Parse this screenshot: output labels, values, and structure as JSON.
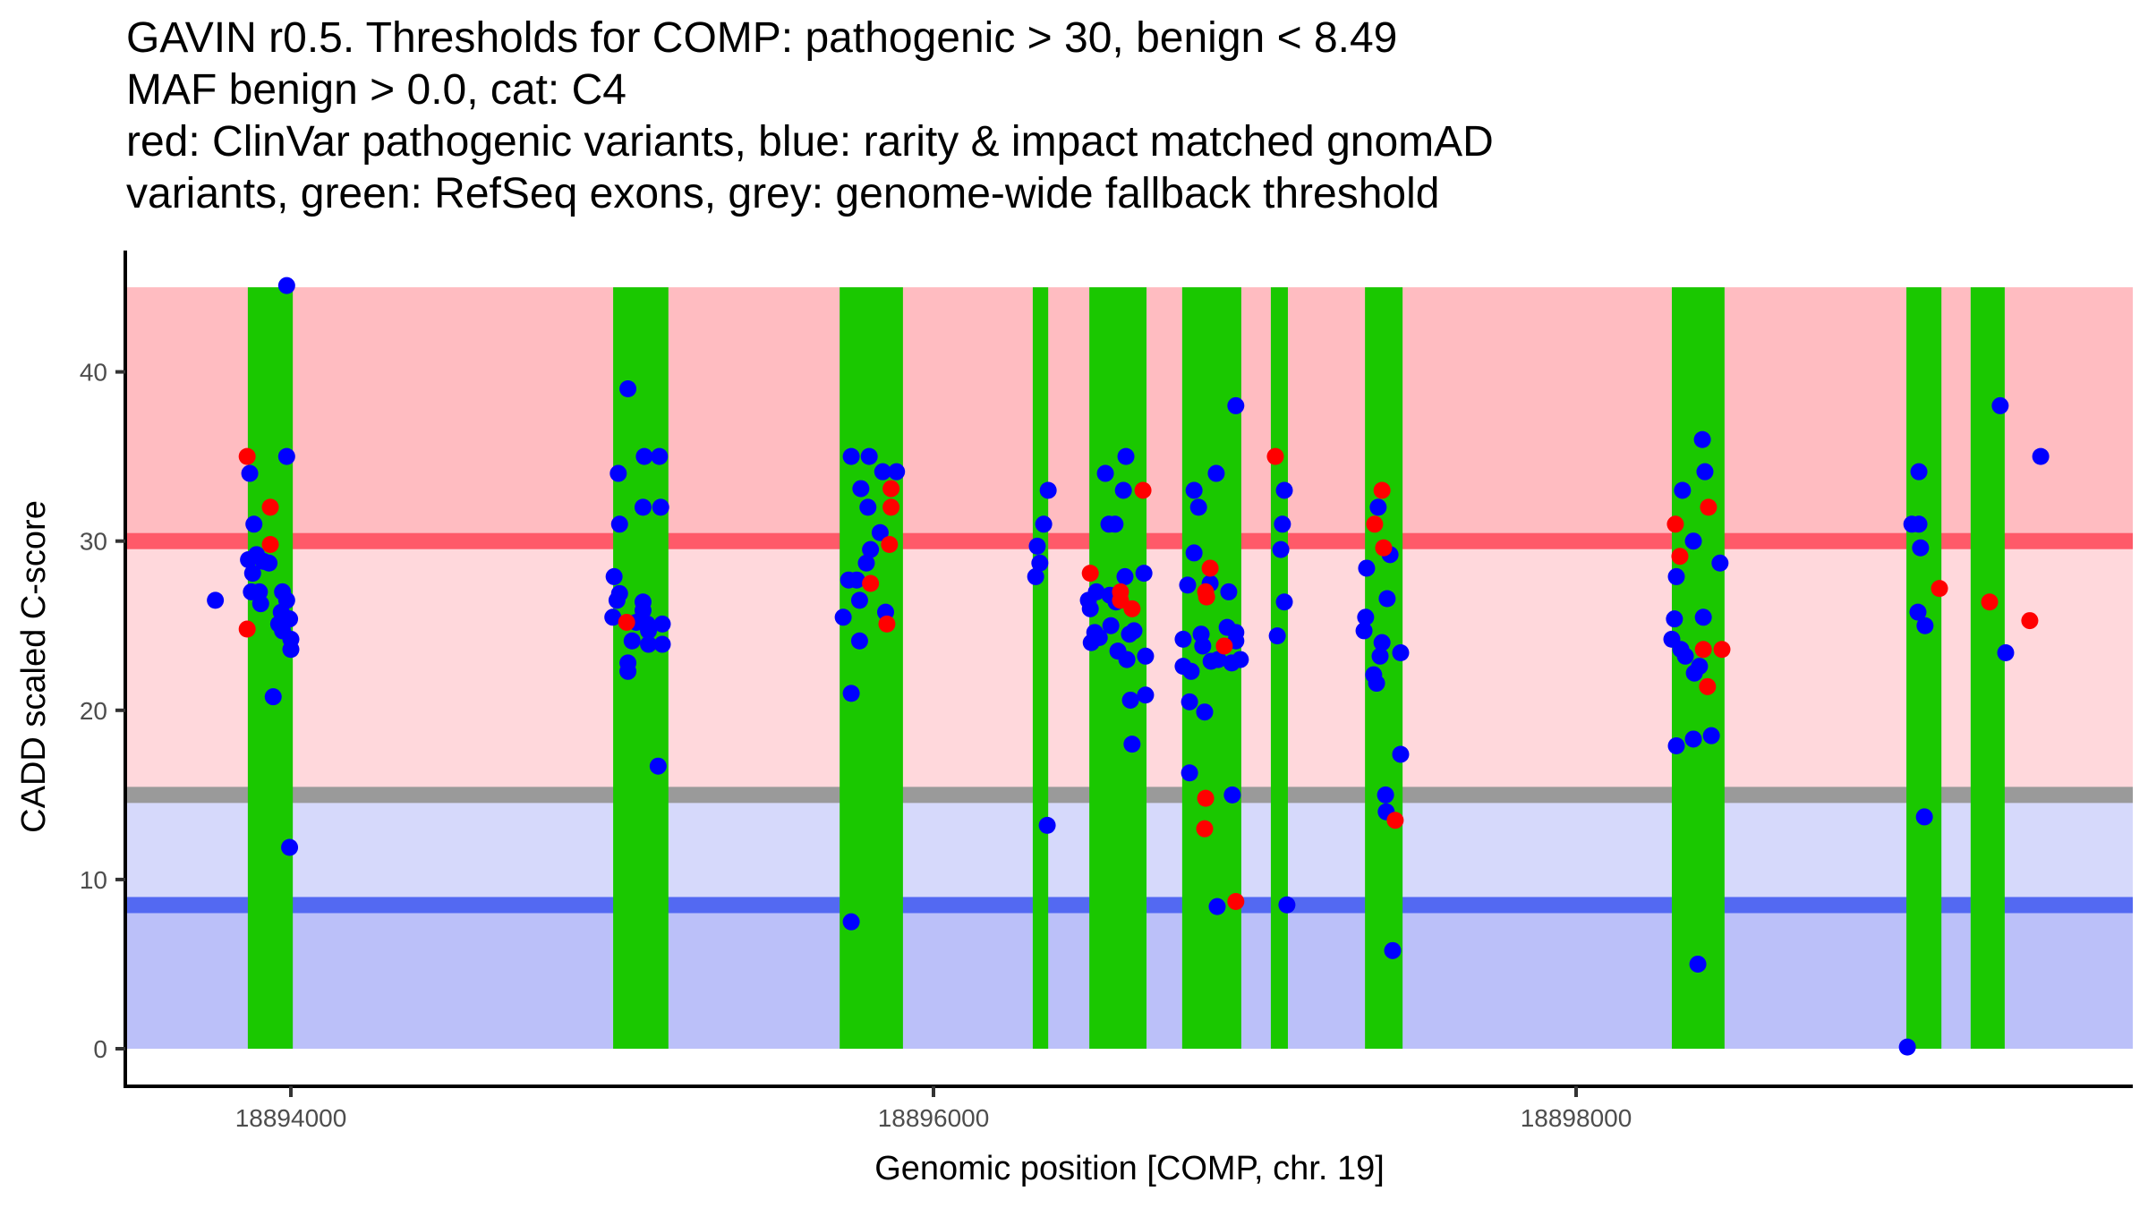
{
  "chart_data": {
    "type": "scatter",
    "title_lines": [
      "GAVIN r0.5. Thresholds for COMP: pathogenic > 30, benign < 8.49",
      "MAF benign > 0.0, cat: C4",
      "red: ClinVar pathogenic variants, blue: rarity & impact matched gnomAD",
      "variants, green: RefSeq exons, grey: genome-wide fallback threshold"
    ],
    "xlabel": "Genomic position [COMP, chr. 19]",
    "ylabel": "CADD scaled C-score",
    "xlim": [
      18893490,
      18899733
    ],
    "ylim": [
      -2.3,
      47.3
    ],
    "x_ticks": [
      {
        "value": 18894000,
        "label": "18894000"
      },
      {
        "value": 18896000,
        "label": "18896000"
      },
      {
        "value": 18898000,
        "label": "18898000"
      }
    ],
    "y_ticks": [
      {
        "value": 0,
        "label": "0"
      },
      {
        "value": 10,
        "label": "10"
      },
      {
        "value": 20,
        "label": "20"
      },
      {
        "value": 30,
        "label": "30"
      },
      {
        "value": 40,
        "label": "40"
      }
    ],
    "grid": false,
    "thresholds": {
      "pathogenic": 30,
      "benign": 8.49,
      "genome_wide_fallback": 15,
      "band_top": 45
    },
    "bands": [
      {
        "name": "pathogenic-zone",
        "from": 30,
        "to": 45,
        "color": "#FFBCC1"
      },
      {
        "name": "likely-pathogenic-zone",
        "from": 15,
        "to": 30,
        "color": "#FFD8DC"
      },
      {
        "name": "likely-benign-zone",
        "from": 8.49,
        "to": 15,
        "color": "#D6D9FB"
      },
      {
        "name": "benign-zone",
        "from": 0,
        "to": 8.49,
        "color": "#BBC0F9"
      }
    ],
    "threshold_lines": [
      {
        "name": "pathogenic-threshold-line",
        "value": 30,
        "color": "#FF5A69"
      },
      {
        "name": "fallback-threshold-line",
        "value": 15,
        "color": "#9A9A9A"
      },
      {
        "name": "benign-threshold-line",
        "value": 8.49,
        "color": "#5369F2"
      }
    ],
    "colors": {
      "pathogenic": "#FF0000",
      "gnomad": "#0000FF",
      "exon": "#1AC800"
    },
    "exons": [
      {
        "start": 18893866,
        "end": 18894006
      },
      {
        "start": 18895003,
        "end": 18895175
      },
      {
        "start": 18895708,
        "end": 18895905
      },
      {
        "start": 18896309,
        "end": 18896357
      },
      {
        "start": 18896485,
        "end": 18896663
      },
      {
        "start": 18896774,
        "end": 18896958
      },
      {
        "start": 18897050,
        "end": 18897103
      },
      {
        "start": 18897343,
        "end": 18897460
      },
      {
        "start": 18898298,
        "end": 18898462
      },
      {
        "start": 18899028,
        "end": 18899137
      },
      {
        "start": 18899228,
        "end": 18899334
      }
    ],
    "series": [
      {
        "name": "gnomAD (rarity & impact matched)",
        "color": "#0000FF",
        "points": [
          [
            18893765,
            26.5
          ],
          [
            18893872,
            34.0
          ],
          [
            18893885,
            31.0
          ],
          [
            18893868,
            28.9
          ],
          [
            18893893,
            29.2
          ],
          [
            18893915,
            28.8
          ],
          [
            18893932,
            28.7
          ],
          [
            18893881,
            28.1
          ],
          [
            18893877,
            27.0
          ],
          [
            18893902,
            27.0
          ],
          [
            18893906,
            26.3
          ],
          [
            18893945,
            20.8
          ],
          [
            18893987,
            45.1
          ],
          [
            18893987,
            35.0
          ],
          [
            18893974,
            27.0
          ],
          [
            18893987,
            26.5
          ],
          [
            18893970,
            25.8
          ],
          [
            18893996,
            25.4
          ],
          [
            18893962,
            25.1
          ],
          [
            18893974,
            24.7
          ],
          [
            18894000,
            24.2
          ],
          [
            18894000,
            23.6
          ],
          [
            18893996,
            11.9
          ],
          [
            18895049,
            39.0
          ],
          [
            18895019,
            34.0
          ],
          [
            18895100,
            35.0
          ],
          [
            18895147,
            35.0
          ],
          [
            18895096,
            32.0
          ],
          [
            18895151,
            32.0
          ],
          [
            18895023,
            31.0
          ],
          [
            18895006,
            27.9
          ],
          [
            18895023,
            26.9
          ],
          [
            18895015,
            26.5
          ],
          [
            18895096,
            26.4
          ],
          [
            18895096,
            25.9
          ],
          [
            18895002,
            25.5
          ],
          [
            18895075,
            25.2
          ],
          [
            18895109,
            25.1
          ],
          [
            18895156,
            25.1
          ],
          [
            18895113,
            24.7
          ],
          [
            18895062,
            24.1
          ],
          [
            18895113,
            23.9
          ],
          [
            18895156,
            23.9
          ],
          [
            18895049,
            22.8
          ],
          [
            18895049,
            22.3
          ],
          [
            18895143,
            16.7
          ],
          [
            18895744,
            35.0
          ],
          [
            18895800,
            35.0
          ],
          [
            18895774,
            33.1
          ],
          [
            18895842,
            34.1
          ],
          [
            18895885,
            34.1
          ],
          [
            18895796,
            32.0
          ],
          [
            18895834,
            30.5
          ],
          [
            18895804,
            29.5
          ],
          [
            18895791,
            28.7
          ],
          [
            18895761,
            27.7
          ],
          [
            18895736,
            27.7
          ],
          [
            18895770,
            26.5
          ],
          [
            18895719,
            25.5
          ],
          [
            18895851,
            25.8
          ],
          [
            18895770,
            24.1
          ],
          [
            18895744,
            21.0
          ],
          [
            18895744,
            7.5
          ],
          [
            18896357,
            33.0
          ],
          [
            18896343,
            31.0
          ],
          [
            18896323,
            29.7
          ],
          [
            18896331,
            28.7
          ],
          [
            18896318,
            27.9
          ],
          [
            18896354,
            13.2
          ],
          [
            18896599,
            35.0
          ],
          [
            18896535,
            34.0
          ],
          [
            18896591,
            33.0
          ],
          [
            18896546,
            31.0
          ],
          [
            18896565,
            31.0
          ],
          [
            18896596,
            27.9
          ],
          [
            18896655,
            28.1
          ],
          [
            18896507,
            27.0
          ],
          [
            18896482,
            26.5
          ],
          [
            18896488,
            26.0
          ],
          [
            18896568,
            26.4
          ],
          [
            18896549,
            26.8
          ],
          [
            18896552,
            25.0
          ],
          [
            18896502,
            24.6
          ],
          [
            18896491,
            24.0
          ],
          [
            18896516,
            24.3
          ],
          [
            18896624,
            24.7
          ],
          [
            18896610,
            24.5
          ],
          [
            18896574,
            23.5
          ],
          [
            18896602,
            23.0
          ],
          [
            18896660,
            23.2
          ],
          [
            18896613,
            20.6
          ],
          [
            18896660,
            20.9
          ],
          [
            18896618,
            18.0
          ],
          [
            18896941,
            38.0
          ],
          [
            18896880,
            34.0
          ],
          [
            18896811,
            33.0
          ],
          [
            18896825,
            32.0
          ],
          [
            18896811,
            29.3
          ],
          [
            18896791,
            27.4
          ],
          [
            18896861,
            27.5
          ],
          [
            18896919,
            27.0
          ],
          [
            18896777,
            24.2
          ],
          [
            18896833,
            24.5
          ],
          [
            18896838,
            23.8
          ],
          [
            18896914,
            24.9
          ],
          [
            18896941,
            24.6
          ],
          [
            18896941,
            24.1
          ],
          [
            18896777,
            22.6
          ],
          [
            18896802,
            22.3
          ],
          [
            18896864,
            22.9
          ],
          [
            18896886,
            23.0
          ],
          [
            18896928,
            22.8
          ],
          [
            18896955,
            23.0
          ],
          [
            18896797,
            20.5
          ],
          [
            18896844,
            19.9
          ],
          [
            18896797,
            16.3
          ],
          [
            18896930,
            15.0
          ],
          [
            18896883,
            8.4
          ],
          [
            18897092,
            33.0
          ],
          [
            18897086,
            31.0
          ],
          [
            18897081,
            29.5
          ],
          [
            18897092,
            26.4
          ],
          [
            18897070,
            24.4
          ],
          [
            18897100,
            8.5
          ],
          [
            18897384,
            32.0
          ],
          [
            18897421,
            29.2
          ],
          [
            18897348,
            28.4
          ],
          [
            18897412,
            26.6
          ],
          [
            18897345,
            25.5
          ],
          [
            18897340,
            24.7
          ],
          [
            18897396,
            24.0
          ],
          [
            18897390,
            23.2
          ],
          [
            18897454,
            23.4
          ],
          [
            18897370,
            22.1
          ],
          [
            18897379,
            21.6
          ],
          [
            18897454,
            17.4
          ],
          [
            18897407,
            15.0
          ],
          [
            18897409,
            14.0
          ],
          [
            18897429,
            5.8
          ],
          [
            18898393,
            36.0
          ],
          [
            18898401,
            34.1
          ],
          [
            18898331,
            33.0
          ],
          [
            18898365,
            30.0
          ],
          [
            18898448,
            28.7
          ],
          [
            18898312,
            27.9
          ],
          [
            18898306,
            25.4
          ],
          [
            18898396,
            25.5
          ],
          [
            18898298,
            24.2
          ],
          [
            18898326,
            23.6
          ],
          [
            18898340,
            23.2
          ],
          [
            18898384,
            22.6
          ],
          [
            18898368,
            22.2
          ],
          [
            18898312,
            17.9
          ],
          [
            18898365,
            18.3
          ],
          [
            18898421,
            18.5
          ],
          [
            18898379,
            5.0
          ],
          [
            18899067,
            34.1
          ],
          [
            18899045,
            31.0
          ],
          [
            18899067,
            31.0
          ],
          [
            18899072,
            29.6
          ],
          [
            18899064,
            25.8
          ],
          [
            18899086,
            25.0
          ],
          [
            18899084,
            13.7
          ],
          [
            18899031,
            0.1
          ],
          [
            18899320,
            38.0
          ],
          [
            18899337,
            23.4
          ],
          [
            18899446,
            35.0
          ]
        ]
      },
      {
        "name": "ClinVar pathogenic",
        "color": "#FF0000",
        "points": [
          [
            18893864,
            35.0
          ],
          [
            18893864,
            24.8
          ],
          [
            18893936,
            32.0
          ],
          [
            18893936,
            29.8
          ],
          [
            18895045,
            25.2
          ],
          [
            18895868,
            33.1
          ],
          [
            18895868,
            32.0
          ],
          [
            18895863,
            29.8
          ],
          [
            18895804,
            27.5
          ],
          [
            18895855,
            25.1
          ],
          [
            18896652,
            33.0
          ],
          [
            18896488,
            28.1
          ],
          [
            18896582,
            27.0
          ],
          [
            18896582,
            26.5
          ],
          [
            18896618,
            26.0
          ],
          [
            18896861,
            28.4
          ],
          [
            18896847,
            27.0
          ],
          [
            18896850,
            26.7
          ],
          [
            18896905,
            23.8
          ],
          [
            18896847,
            14.8
          ],
          [
            18896844,
            13.0
          ],
          [
            18896941,
            8.7
          ],
          [
            18897064,
            35.0
          ],
          [
            18897396,
            33.0
          ],
          [
            18897373,
            31.0
          ],
          [
            18897401,
            29.6
          ],
          [
            18897437,
            13.5
          ],
          [
            18898412,
            32.0
          ],
          [
            18898309,
            31.0
          ],
          [
            18898323,
            29.1
          ],
          [
            18898396,
            23.6
          ],
          [
            18898454,
            23.6
          ],
          [
            18898409,
            21.4
          ],
          [
            18899131,
            27.2
          ],
          [
            18899287,
            26.4
          ],
          [
            18899412,
            25.3
          ]
        ]
      }
    ],
    "legend": "none (described in title)"
  }
}
